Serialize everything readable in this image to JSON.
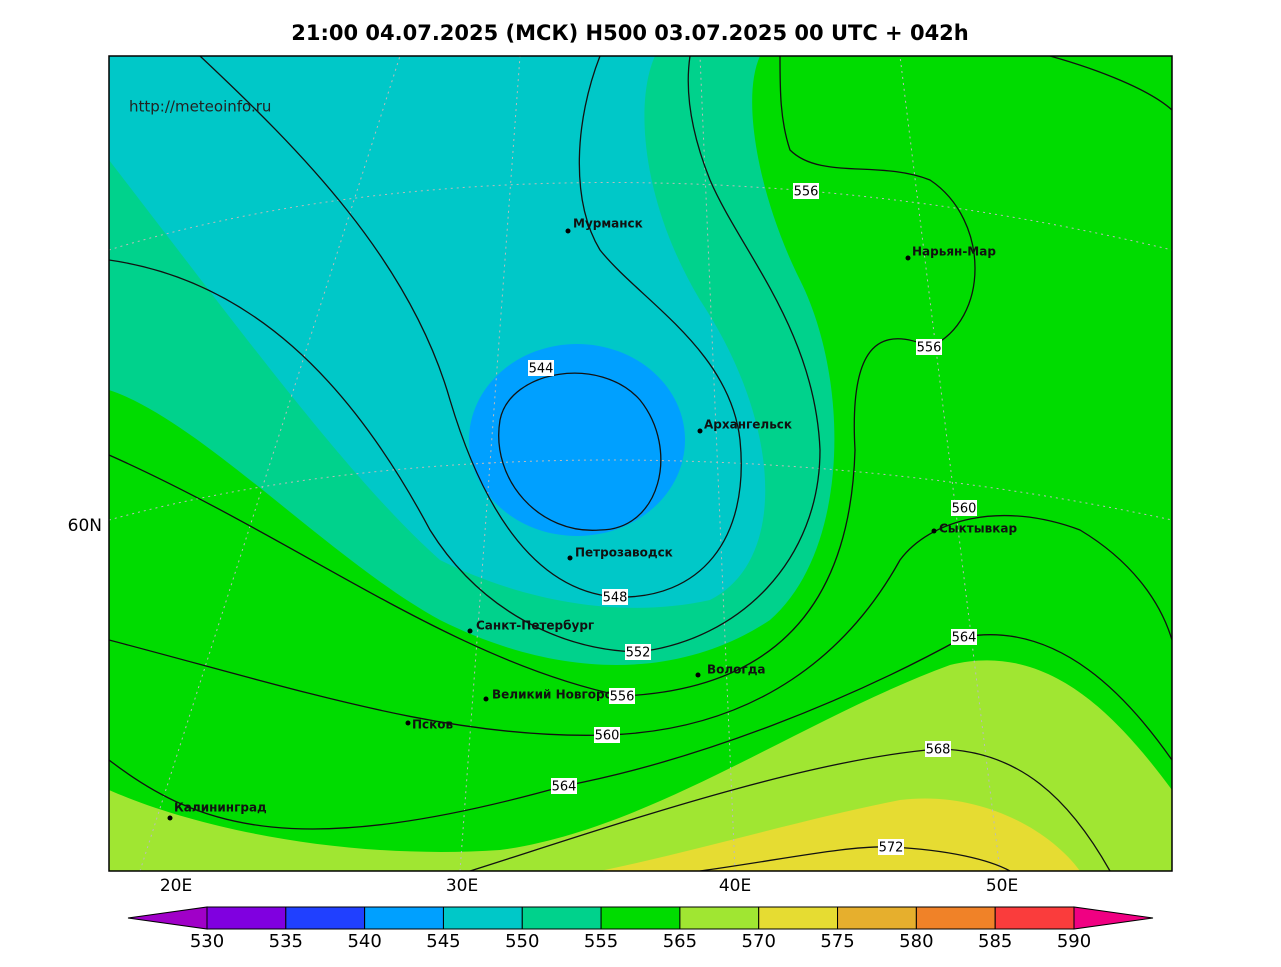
{
  "title": "21:00 04.07.2025 (МСК) H500  03.07.2025 00 UTC + 042h",
  "url": "http://meteoinfo.ru",
  "lat_labels": [
    "60N"
  ],
  "lon_labels": [
    "20E",
    "30E",
    "40E",
    "50E"
  ],
  "cities": [
    "Мурманск",
    "Нарьян-Мар",
    "Архангельск",
    "Петрозаводск",
    "Сыктывкар",
    "Санкт-Петербург",
    "Вологда",
    "Великий Новгород",
    "Псков",
    "Калининград"
  ],
  "contour_labels": [
    556,
    556,
    544,
    548,
    552,
    556,
    560,
    560,
    564,
    564,
    568,
    572
  ],
  "colorbar": {
    "levels": [
      530,
      535,
      540,
      545,
      550,
      555,
      565,
      570,
      575,
      580,
      585,
      590
    ],
    "colors": [
      "#8000e0",
      "#2040ff",
      "#00a0ff",
      "#00c8c8",
      "#00d28c",
      "#00dc00",
      "#a0e632",
      "#e6dc32",
      "#e6af2d",
      "#f08228",
      "#fa3c3c"
    ],
    "under_color": "#a000c8",
    "over_color": "#f00082"
  }
}
